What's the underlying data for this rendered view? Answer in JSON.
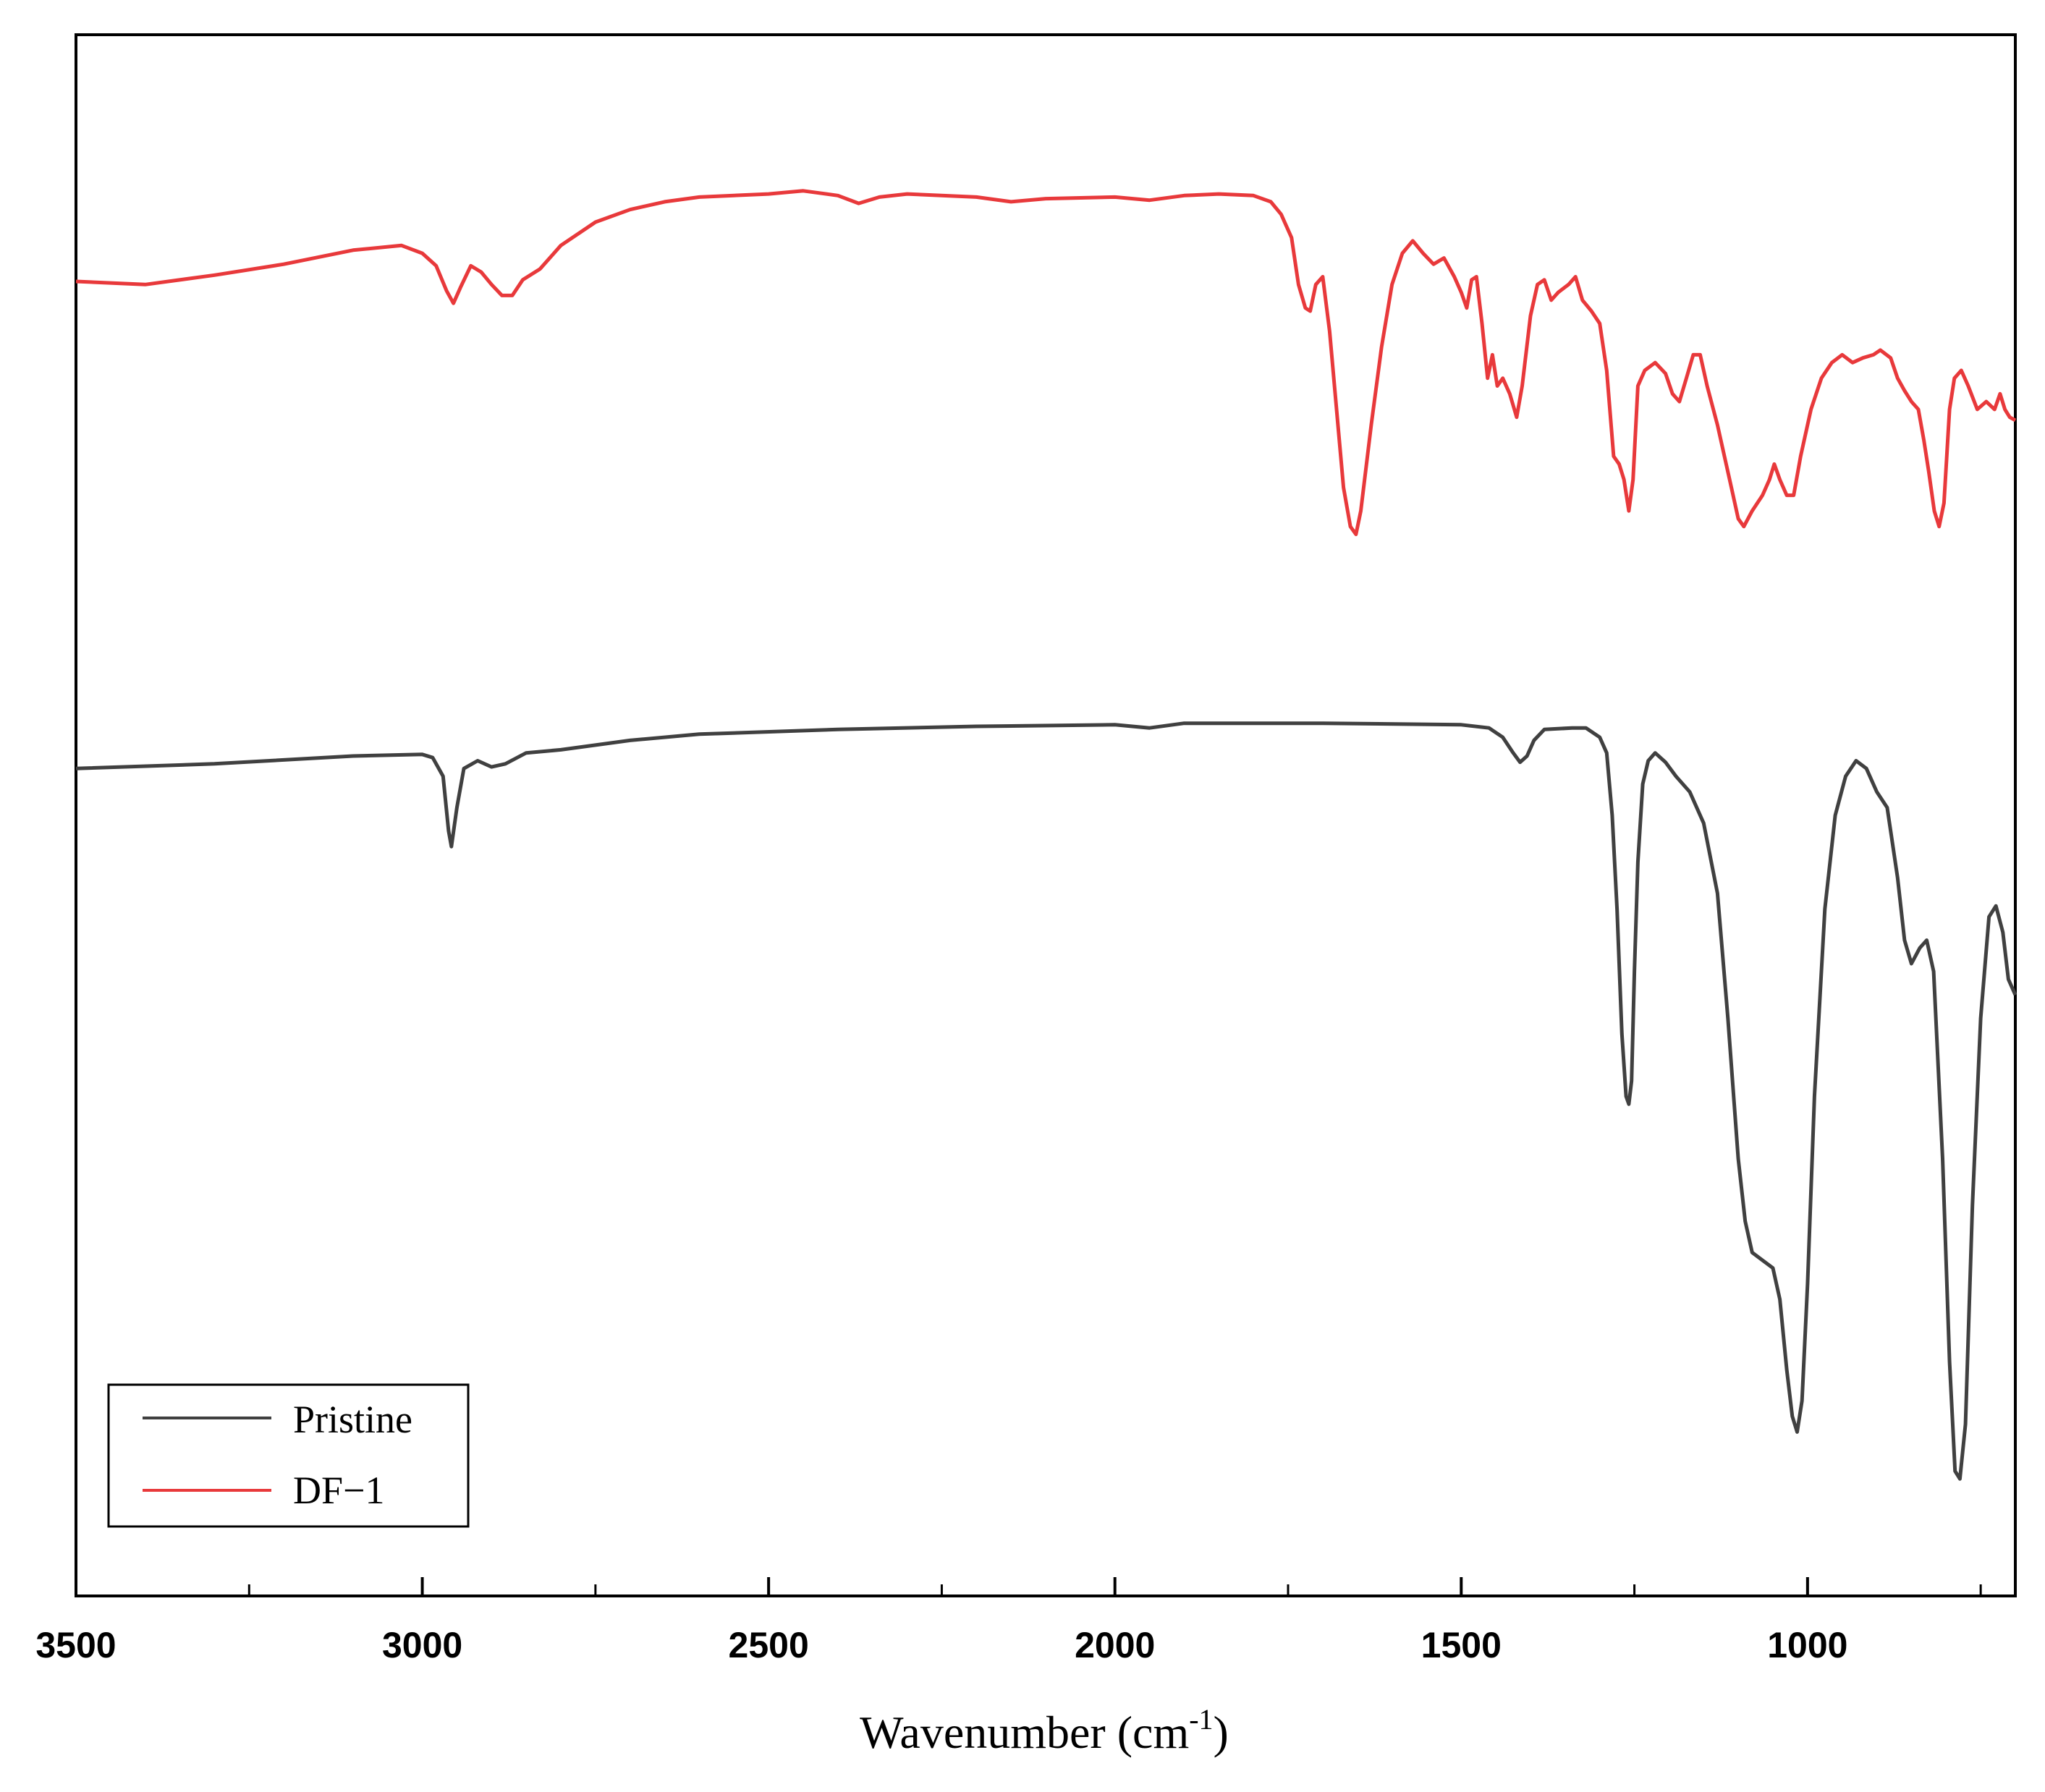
{
  "chart_data": {
    "type": "line",
    "xlabel": "Wavenumber (cm",
    "xlabel_superscript": "-1",
    "xlabel_suffix": ")",
    "xlim": [
      3500,
      700
    ],
    "x_reversed": true,
    "ylabel": "",
    "y_axis_labels": "none",
    "ylim": [
      0,
      100
    ],
    "grid": false,
    "xticks": [
      3500,
      3000,
      2500,
      2000,
      1500,
      1000
    ],
    "xticks_minor": [
      3250,
      2750,
      2250,
      1750,
      1250,
      750
    ],
    "legend_placement": "bottom-left",
    "series": [
      {
        "name": "Pristine",
        "color": "#404040",
        "points": [
          [
            3500,
            53.0
          ],
          [
            3300,
            53.3
          ],
          [
            3100,
            53.8
          ],
          [
            3000,
            53.9
          ],
          [
            2985,
            53.7
          ],
          [
            2970,
            52.5
          ],
          [
            2962,
            49.0
          ],
          [
            2958,
            48.0
          ],
          [
            2950,
            50.5
          ],
          [
            2940,
            53.0
          ],
          [
            2920,
            53.5
          ],
          [
            2900,
            53.1
          ],
          [
            2880,
            53.3
          ],
          [
            2850,
            54.0
          ],
          [
            2800,
            54.2
          ],
          [
            2700,
            54.8
          ],
          [
            2600,
            55.2
          ],
          [
            2400,
            55.5
          ],
          [
            2200,
            55.7
          ],
          [
            2000,
            55.8
          ],
          [
            1950,
            55.6
          ],
          [
            1900,
            55.9
          ],
          [
            1700,
            55.9
          ],
          [
            1500,
            55.8
          ],
          [
            1460,
            55.6
          ],
          [
            1440,
            55.0
          ],
          [
            1425,
            54.0
          ],
          [
            1415,
            53.4
          ],
          [
            1405,
            53.8
          ],
          [
            1395,
            54.8
          ],
          [
            1380,
            55.5
          ],
          [
            1340,
            55.6
          ],
          [
            1320,
            55.6
          ],
          [
            1300,
            55.0
          ],
          [
            1290,
            54.0
          ],
          [
            1282,
            50.0
          ],
          [
            1275,
            44.0
          ],
          [
            1268,
            36.0
          ],
          [
            1262,
            32.0
          ],
          [
            1258,
            31.5
          ],
          [
            1254,
            33.0
          ],
          [
            1250,
            40.0
          ],
          [
            1245,
            47.0
          ],
          [
            1238,
            52.0
          ],
          [
            1230,
            53.5
          ],
          [
            1220,
            54.0
          ],
          [
            1205,
            53.4
          ],
          [
            1190,
            52.5
          ],
          [
            1170,
            51.5
          ],
          [
            1150,
            49.5
          ],
          [
            1130,
            45.0
          ],
          [
            1115,
            37.0
          ],
          [
            1100,
            28.0
          ],
          [
            1090,
            24.0
          ],
          [
            1080,
            22.0
          ],
          [
            1065,
            21.5
          ],
          [
            1050,
            21.0
          ],
          [
            1040,
            19.0
          ],
          [
            1030,
            14.5
          ],
          [
            1022,
            11.5
          ],
          [
            1015,
            10.5
          ],
          [
            1008,
            12.5
          ],
          [
            1000,
            20.0
          ],
          [
            990,
            32.0
          ],
          [
            975,
            44.0
          ],
          [
            960,
            50.0
          ],
          [
            945,
            52.5
          ],
          [
            930,
            53.5
          ],
          [
            915,
            53.0
          ],
          [
            900,
            51.5
          ],
          [
            885,
            50.5
          ],
          [
            870,
            46.0
          ],
          [
            860,
            42.0
          ],
          [
            850,
            40.5
          ],
          [
            838,
            41.5
          ],
          [
            828,
            42.0
          ],
          [
            818,
            40.0
          ],
          [
            805,
            28.0
          ],
          [
            795,
            15.0
          ],
          [
            787,
            8.0
          ],
          [
            780,
            7.5
          ],
          [
            772,
            11.0
          ],
          [
            762,
            25.0
          ],
          [
            750,
            37.0
          ],
          [
            738,
            43.5
          ],
          [
            728,
            44.2
          ],
          [
            718,
            42.5
          ],
          [
            710,
            39.5
          ],
          [
            700,
            38.5
          ]
        ]
      },
      {
        "name": "DF−1",
        "color": "#e8393b",
        "points": [
          [
            3500,
            84.2
          ],
          [
            3400,
            84.0
          ],
          [
            3300,
            84.6
          ],
          [
            3200,
            85.3
          ],
          [
            3100,
            86.2
          ],
          [
            3030,
            86.5
          ],
          [
            3000,
            86.0
          ],
          [
            2980,
            85.2
          ],
          [
            2965,
            83.6
          ],
          [
            2955,
            82.8
          ],
          [
            2945,
            83.8
          ],
          [
            2930,
            85.2
          ],
          [
            2915,
            84.8
          ],
          [
            2900,
            84.0
          ],
          [
            2885,
            83.3
          ],
          [
            2870,
            83.3
          ],
          [
            2855,
            84.3
          ],
          [
            2830,
            85.0
          ],
          [
            2800,
            86.5
          ],
          [
            2750,
            88.0
          ],
          [
            2700,
            88.8
          ],
          [
            2650,
            89.3
          ],
          [
            2600,
            89.6
          ],
          [
            2500,
            89.8
          ],
          [
            2450,
            90.0
          ],
          [
            2400,
            89.7
          ],
          [
            2370,
            89.2
          ],
          [
            2340,
            89.6
          ],
          [
            2300,
            89.8
          ],
          [
            2200,
            89.6
          ],
          [
            2150,
            89.3
          ],
          [
            2100,
            89.5
          ],
          [
            2000,
            89.6
          ],
          [
            1950,
            89.4
          ],
          [
            1900,
            89.7
          ],
          [
            1850,
            89.8
          ],
          [
            1800,
            89.7
          ],
          [
            1775,
            89.3
          ],
          [
            1760,
            88.5
          ],
          [
            1745,
            87.0
          ],
          [
            1735,
            84.0
          ],
          [
            1725,
            82.5
          ],
          [
            1718,
            82.3
          ],
          [
            1710,
            84.0
          ],
          [
            1700,
            84.5
          ],
          [
            1690,
            81.0
          ],
          [
            1680,
            76.0
          ],
          [
            1670,
            71.0
          ],
          [
            1660,
            68.5
          ],
          [
            1652,
            68.0
          ],
          [
            1645,
            69.5
          ],
          [
            1630,
            75.0
          ],
          [
            1615,
            80.0
          ],
          [
            1600,
            84.0
          ],
          [
            1585,
            86.0
          ],
          [
            1570,
            86.8
          ],
          [
            1555,
            86.0
          ],
          [
            1540,
            85.3
          ],
          [
            1525,
            85.7
          ],
          [
            1510,
            84.5
          ],
          [
            1500,
            83.5
          ],
          [
            1492,
            82.5
          ],
          [
            1485,
            84.3
          ],
          [
            1478,
            84.5
          ],
          [
            1470,
            81.5
          ],
          [
            1462,
            78.0
          ],
          [
            1455,
            79.5
          ],
          [
            1448,
            77.5
          ],
          [
            1440,
            78.0
          ],
          [
            1430,
            77.0
          ],
          [
            1420,
            75.5
          ],
          [
            1412,
            77.5
          ],
          [
            1400,
            82.0
          ],
          [
            1390,
            84.0
          ],
          [
            1380,
            84.3
          ],
          [
            1370,
            83.0
          ],
          [
            1360,
            83.5
          ],
          [
            1345,
            84.0
          ],
          [
            1335,
            84.5
          ],
          [
            1325,
            83.0
          ],
          [
            1312,
            82.3
          ],
          [
            1300,
            81.5
          ],
          [
            1290,
            78.5
          ],
          [
            1280,
            73.0
          ],
          [
            1272,
            72.5
          ],
          [
            1265,
            71.5
          ],
          [
            1258,
            69.5
          ],
          [
            1252,
            71.5
          ],
          [
            1245,
            77.5
          ],
          [
            1235,
            78.5
          ],
          [
            1220,
            79.0
          ],
          [
            1205,
            78.3
          ],
          [
            1195,
            77.0
          ],
          [
            1185,
            76.5
          ],
          [
            1175,
            78.0
          ],
          [
            1165,
            79.5
          ],
          [
            1155,
            79.5
          ],
          [
            1145,
            77.5
          ],
          [
            1130,
            75.0
          ],
          [
            1120,
            73.0
          ],
          [
            1110,
            71.0
          ],
          [
            1100,
            69.0
          ],
          [
            1092,
            68.5
          ],
          [
            1080,
            69.5
          ],
          [
            1065,
            70.5
          ],
          [
            1055,
            71.5
          ],
          [
            1048,
            72.5
          ],
          [
            1040,
            71.5
          ],
          [
            1030,
            70.5
          ],
          [
            1020,
            70.5
          ],
          [
            1010,
            73.0
          ],
          [
            995,
            76.0
          ],
          [
            980,
            78.0
          ],
          [
            965,
            79.0
          ],
          [
            950,
            79.5
          ],
          [
            935,
            79.0
          ],
          [
            920,
            79.3
          ],
          [
            905,
            79.5
          ],
          [
            895,
            79.8
          ],
          [
            880,
            79.3
          ],
          [
            870,
            78.0
          ],
          [
            860,
            77.2
          ],
          [
            850,
            76.5
          ],
          [
            840,
            76.0
          ],
          [
            832,
            74.0
          ],
          [
            825,
            72.0
          ],
          [
            817,
            69.5
          ],
          [
            810,
            68.5
          ],
          [
            803,
            70.0
          ],
          [
            795,
            76.0
          ],
          [
            788,
            78.0
          ],
          [
            778,
            78.5
          ],
          [
            768,
            77.5
          ],
          [
            755,
            76.0
          ],
          [
            742,
            76.5
          ],
          [
            730,
            76.0
          ],
          [
            722,
            77.0
          ],
          [
            715,
            76.0
          ],
          [
            708,
            75.5
          ],
          [
            700,
            75.3
          ]
        ]
      }
    ]
  }
}
